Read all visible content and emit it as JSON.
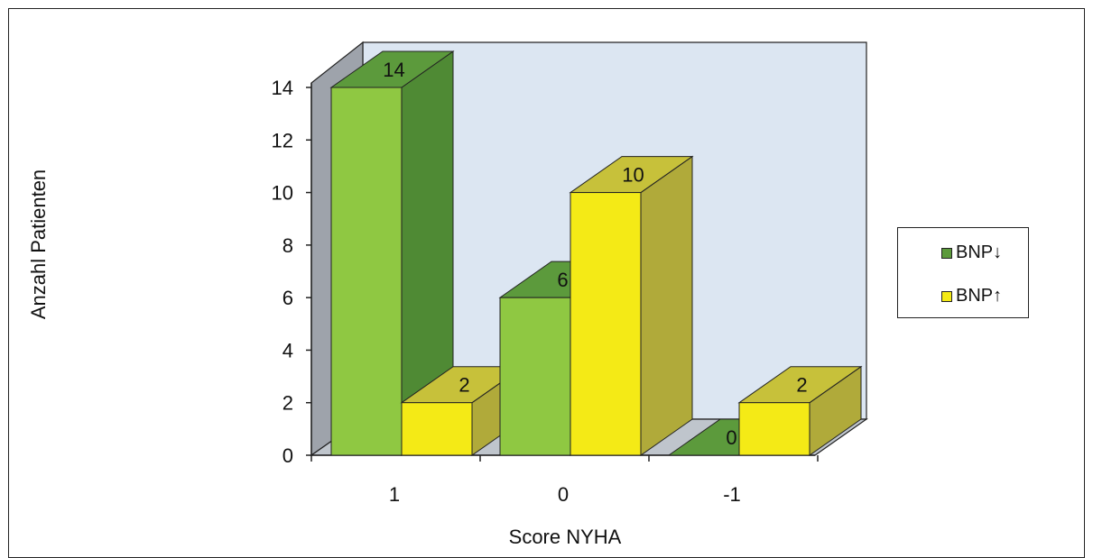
{
  "chart_data": {
    "type": "bar",
    "categories": [
      "1",
      "0",
      "-1"
    ],
    "series": [
      {
        "name": "BNP↓",
        "values": [
          14,
          6,
          0
        ],
        "color": "#8fc842",
        "side_color": "#4f8a34",
        "top_color": "#5c9a3c"
      },
      {
        "name": "BNP↑",
        "values": [
          2,
          10,
          2
        ],
        "color": "#f4ea16",
        "side_color": "#b0aa3a",
        "top_color": "#c7c13a"
      }
    ],
    "data_labels": [
      [
        "14",
        "6",
        "0"
      ],
      [
        "2",
        "10",
        "2"
      ]
    ],
    "xlabel": "Score NYHA",
    "ylabel": "Anzahl  Patienten",
    "ylim": [
      0,
      14
    ],
    "yticks": [
      "0",
      "2",
      "4",
      "6",
      "8",
      "10",
      "12",
      "14"
    ],
    "grid": false,
    "legend_position": "right",
    "wall_color": "#dce6f2",
    "wall_side_color": "#9ea3ab"
  }
}
